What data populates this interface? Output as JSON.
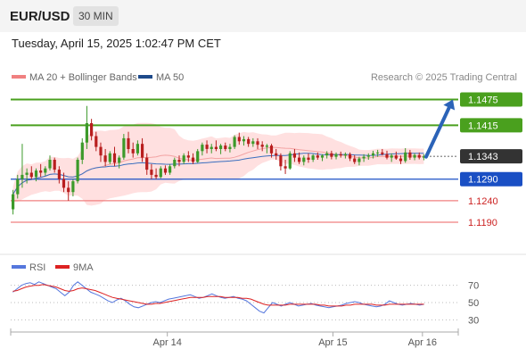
{
  "header": {
    "symbol": "EUR/USD",
    "timeframe": "30 MIN"
  },
  "datetime": "Tuesday, April 15, 2025 1:02:47 PM CET",
  "legend": {
    "bollinger": "MA 20 + Bollinger Bands",
    "ma50": "MA 50",
    "credit": "Research © 2025 Trading Central",
    "rsi": "RSI",
    "rsi_ma": "9MA"
  },
  "colors": {
    "resistance": "#4aa01e",
    "pivot": "#1a4fc4",
    "support": "#f08080",
    "current": "#333333",
    "up_candle": "#3c9a2a",
    "down_candle": "#b81e1e",
    "ma50": "#3a6fbf",
    "bands": "#ffd6d6",
    "rsi": "#5577dd",
    "rsi_ma": "#dd2222",
    "arrow": "#2b63b8"
  },
  "chart_data": [
    {
      "type": "candlestick",
      "ylim": [
        1.1105,
        1.1505
      ],
      "levels": [
        {
          "label": "1.1475",
          "value": 1.1475,
          "kind": "resistance"
        },
        {
          "label": "1.1415",
          "value": 1.1415,
          "kind": "resistance"
        },
        {
          "label": "1.1343",
          "value": 1.1343,
          "kind": "current"
        },
        {
          "label": "1.1290",
          "value": 1.129,
          "kind": "pivot"
        },
        {
          "label": "1.1240",
          "value": 1.124,
          "kind": "support"
        },
        {
          "label": "1.1190",
          "value": 1.119,
          "kind": "support"
        }
      ],
      "xticks": [
        "Apr 14",
        "Apr 15",
        "Apr 16"
      ],
      "xtick_pos": [
        0.35,
        0.72,
        0.92
      ],
      "forecast": {
        "from": 1.1342,
        "to": 1.1475
      },
      "candles": [
        [
          1.122,
          1.1265,
          1.1208,
          1.1255
        ],
        [
          1.1255,
          1.13,
          1.1245,
          1.129
        ],
        [
          1.129,
          1.1372,
          1.127,
          1.13
        ],
        [
          1.13,
          1.1315,
          1.128,
          1.1305
        ],
        [
          1.1305,
          1.132,
          1.129,
          1.1295
        ],
        [
          1.1295,
          1.1315,
          1.1285,
          1.131
        ],
        [
          1.131,
          1.1325,
          1.1295,
          1.1305
        ],
        [
          1.1305,
          1.132,
          1.1298,
          1.1315
        ],
        [
          1.1315,
          1.1345,
          1.131,
          1.1335
        ],
        [
          1.1335,
          1.134,
          1.1305,
          1.1312
        ],
        [
          1.1312,
          1.132,
          1.128,
          1.129
        ],
        [
          1.129,
          1.1305,
          1.126,
          1.127
        ],
        [
          1.127,
          1.1285,
          1.124,
          1.126
        ],
        [
          1.126,
          1.129,
          1.125,
          1.1285
        ],
        [
          1.1285,
          1.134,
          1.128,
          1.1335
        ],
        [
          1.1335,
          1.1385,
          1.1325,
          1.1375
        ],
        [
          1.1375,
          1.146,
          1.136,
          1.142
        ],
        [
          1.142,
          1.143,
          1.138,
          1.139
        ],
        [
          1.139,
          1.14,
          1.1355,
          1.1365
        ],
        [
          1.1365,
          1.1375,
          1.133,
          1.1345
        ],
        [
          1.1345,
          1.136,
          1.132,
          1.133
        ],
        [
          1.133,
          1.1355,
          1.1325,
          1.135
        ],
        [
          1.135,
          1.1365,
          1.132,
          1.1328
        ],
        [
          1.1328,
          1.1345,
          1.1315,
          1.134
        ],
        [
          1.134,
          1.1395,
          1.1335,
          1.1385
        ],
        [
          1.1385,
          1.14,
          1.135,
          1.136
        ],
        [
          1.136,
          1.1375,
          1.134,
          1.135
        ],
        [
          1.135,
          1.138,
          1.1345,
          1.1372
        ],
        [
          1.1372,
          1.1385,
          1.133,
          1.134
        ],
        [
          1.134,
          1.135,
          1.13,
          1.1312
        ],
        [
          1.1312,
          1.1325,
          1.129,
          1.13
        ],
        [
          1.13,
          1.1315,
          1.129,
          1.1295
        ],
        [
          1.1295,
          1.132,
          1.1292,
          1.1315
        ],
        [
          1.1315,
          1.1322,
          1.13,
          1.1305
        ],
        [
          1.1305,
          1.1325,
          1.13,
          1.132
        ],
        [
          1.132,
          1.134,
          1.1315,
          1.1335
        ],
        [
          1.1335,
          1.1345,
          1.132,
          1.133
        ],
        [
          1.133,
          1.135,
          1.1325,
          1.1345
        ],
        [
          1.1345,
          1.1355,
          1.133,
          1.134
        ],
        [
          1.134,
          1.135,
          1.1325,
          1.133
        ],
        [
          1.133,
          1.136,
          1.1328,
          1.1355
        ],
        [
          1.1355,
          1.1375,
          1.1345,
          1.137
        ],
        [
          1.137,
          1.138,
          1.135,
          1.136
        ],
        [
          1.136,
          1.1372,
          1.135,
          1.1365
        ],
        [
          1.1365,
          1.138,
          1.1355,
          1.136
        ],
        [
          1.136,
          1.1372,
          1.1348,
          1.1368
        ],
        [
          1.1368,
          1.1375,
          1.1355,
          1.136
        ],
        [
          1.136,
          1.1372,
          1.1352,
          1.1365
        ],
        [
          1.1365,
          1.1392,
          1.136,
          1.1388
        ],
        [
          1.1388,
          1.1398,
          1.137,
          1.1378
        ],
        [
          1.1378,
          1.139,
          1.1368,
          1.1383
        ],
        [
          1.1383,
          1.1388,
          1.1365,
          1.1372
        ],
        [
          1.1372,
          1.1385,
          1.1365,
          1.1378
        ],
        [
          1.1378,
          1.1385,
          1.136,
          1.137
        ],
        [
          1.137,
          1.1378,
          1.1355,
          1.1365
        ],
        [
          1.1365,
          1.1372,
          1.135,
          1.1368
        ],
        [
          1.1368,
          1.1372,
          1.134,
          1.135
        ],
        [
          1.135,
          1.136,
          1.1335,
          1.1345
        ],
        [
          1.1345,
          1.135,
          1.131,
          1.132
        ],
        [
          1.132,
          1.1335,
          1.1302,
          1.1315
        ],
        [
          1.1315,
          1.1355,
          1.1312,
          1.135
        ],
        [
          1.135,
          1.136,
          1.133,
          1.134
        ],
        [
          1.134,
          1.1352,
          1.1325,
          1.133
        ],
        [
          1.133,
          1.1345,
          1.1322,
          1.134
        ],
        [
          1.134,
          1.135,
          1.1328,
          1.1335
        ],
        [
          1.1335,
          1.1348,
          1.133,
          1.1345
        ],
        [
          1.1345,
          1.1352,
          1.1335,
          1.134
        ],
        [
          1.134,
          1.1348,
          1.1332,
          1.1345
        ],
        [
          1.1345,
          1.1355,
          1.1338,
          1.135
        ],
        [
          1.135,
          1.1356,
          1.1336,
          1.1342
        ],
        [
          1.1342,
          1.1352,
          1.1336,
          1.1348
        ],
        [
          1.1348,
          1.1354,
          1.134,
          1.1345
        ],
        [
          1.1345,
          1.1352,
          1.1338,
          1.1348
        ],
        [
          1.1348,
          1.1352,
          1.1332,
          1.1338
        ],
        [
          1.1338,
          1.1346,
          1.1325,
          1.133
        ],
        [
          1.133,
          1.1342,
          1.1322,
          1.1338
        ],
        [
          1.1338,
          1.1348,
          1.133,
          1.1342
        ],
        [
          1.1342,
          1.135,
          1.1335,
          1.1345
        ],
        [
          1.1345,
          1.1356,
          1.1338,
          1.135
        ],
        [
          1.135,
          1.1358,
          1.1342,
          1.1352
        ],
        [
          1.1352,
          1.136,
          1.1345,
          1.1348
        ],
        [
          1.1348,
          1.1356,
          1.1336,
          1.134
        ],
        [
          1.134,
          1.135,
          1.133,
          1.1345
        ],
        [
          1.1345,
          1.1354,
          1.1335,
          1.1338
        ],
        [
          1.1338,
          1.1345,
          1.1325,
          1.1332
        ],
        [
          1.1332,
          1.1362,
          1.1328,
          1.1352
        ],
        [
          1.1352,
          1.1358,
          1.1335,
          1.134
        ],
        [
          1.134,
          1.135,
          1.1334,
          1.1346
        ],
        [
          1.1346,
          1.1352,
          1.1336,
          1.134
        ],
        [
          1.134,
          1.1348,
          1.1334,
          1.1343
        ]
      ]
    },
    {
      "type": "line",
      "title": "",
      "ylim": [
        20,
        80
      ],
      "yticks": [
        70,
        50,
        30
      ],
      "series": [
        {
          "name": "RSI",
          "values": [
            62,
            66,
            70,
            72,
            73,
            71,
            74,
            72,
            70,
            68,
            66,
            62,
            58,
            62,
            70,
            74,
            70,
            66,
            62,
            60,
            58,
            55,
            52,
            50,
            53,
            55,
            52,
            48,
            45,
            44,
            46,
            48,
            50,
            51,
            50,
            52,
            54,
            55,
            56,
            57,
            58,
            59,
            57,
            55,
            56,
            58,
            60,
            58,
            56,
            55,
            56,
            57,
            55,
            54,
            52,
            48,
            44,
            40,
            38,
            44,
            50,
            48,
            46,
            48,
            50,
            48,
            46,
            47,
            48,
            49,
            47,
            46,
            45,
            44,
            45,
            46,
            47,
            49,
            50,
            51,
            50,
            48,
            47,
            46,
            45,
            46,
            48,
            52,
            50,
            48,
            47,
            48,
            49,
            48,
            47,
            48
          ]
        },
        {
          "name": "9MA",
          "values": [
            63,
            64,
            66,
            68,
            69,
            70,
            70,
            71,
            70,
            69,
            68,
            66,
            64,
            63,
            64,
            66,
            67,
            66,
            65,
            64,
            62,
            60,
            58,
            56,
            55,
            54,
            53,
            52,
            51,
            50,
            49,
            48,
            48,
            49,
            49,
            50,
            51,
            52,
            53,
            54,
            55,
            56,
            56,
            56,
            56,
            57,
            57,
            57,
            57,
            56,
            56,
            56,
            56,
            55,
            55,
            54,
            52,
            50,
            48,
            47,
            47,
            47,
            47,
            47,
            48,
            48,
            48,
            48,
            48,
            48,
            48,
            47,
            47,
            46,
            46,
            46,
            46,
            47,
            47,
            48,
            48,
            48,
            48,
            48,
            47,
            47,
            47,
            48,
            48,
            48,
            48,
            48,
            48,
            48,
            48,
            48
          ]
        }
      ]
    }
  ]
}
